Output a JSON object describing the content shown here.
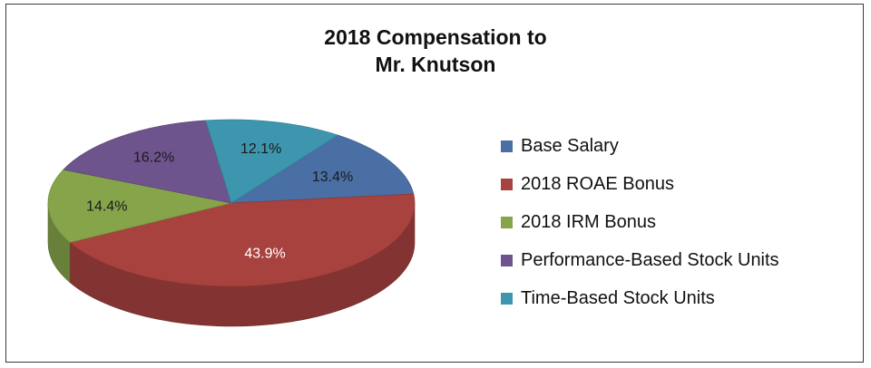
{
  "chart_data": {
    "type": "pie",
    "title": [
      "2018 Compensation to",
      "Mr. Knutson"
    ],
    "categories": [
      "Base Salary",
      "2018 ROAE Bonus",
      "2018 IRM Bonus",
      "Performance-Based Stock Units",
      "Time-Based Stock Units"
    ],
    "values": [
      13.4,
      43.9,
      14.4,
      16.2,
      12.1
    ],
    "data_labels": [
      "13.4%",
      "43.9%",
      "14.4%",
      "16.2%",
      "12.1%"
    ],
    "colors": [
      "#4a6fa5",
      "#a8423f",
      "#86a44a",
      "#6e548d",
      "#3d96ae"
    ],
    "style": "3d",
    "legend_position": "right"
  }
}
